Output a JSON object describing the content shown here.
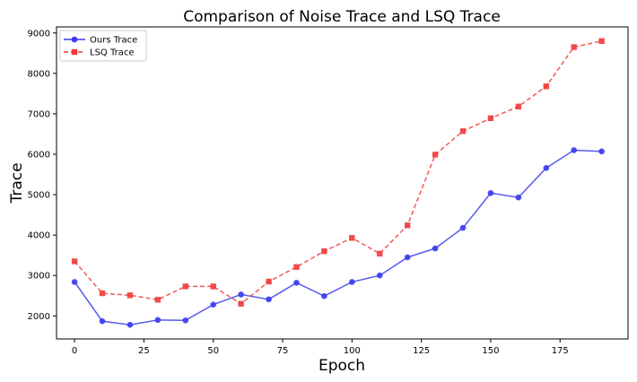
{
  "chart_data": {
    "type": "line",
    "title": "Comparison of Noise Trace and LSQ Trace",
    "xlabel": "Epoch",
    "ylabel": "Trace",
    "x": [
      0,
      10,
      20,
      30,
      40,
      50,
      60,
      70,
      80,
      90,
      100,
      110,
      120,
      130,
      140,
      150,
      160,
      170,
      180,
      190
    ],
    "series": [
      {
        "name": "Ours Trace",
        "color": "#3a3af0",
        "marker": "circle",
        "linestyle": "solid",
        "values": [
          2840,
          1870,
          1780,
          1900,
          1890,
          2280,
          2530,
          2410,
          2820,
          2490,
          2840,
          3000,
          3450,
          3670,
          4180,
          5040,
          4930,
          5660,
          6100,
          6070
        ]
      },
      {
        "name": "LSQ Trace",
        "color": "#f03a3a",
        "marker": "square",
        "linestyle": "dashed",
        "values": [
          3350,
          2560,
          2510,
          2400,
          2730,
          2730,
          2300,
          2850,
          3210,
          3600,
          3930,
          3540,
          4240,
          5990,
          6570,
          6890,
          7180,
          7680,
          8650,
          8800
        ]
      }
    ],
    "xticks": [
      0,
      25,
      50,
      75,
      100,
      125,
      150,
      175
    ],
    "yticks": [
      2000,
      3000,
      4000,
      5000,
      6000,
      7000,
      8000,
      9000
    ],
    "xlim": [
      -6.5,
      199.5
    ],
    "ylim": [
      1430,
      9150
    ],
    "grid": false,
    "legend_position": "top-left"
  }
}
